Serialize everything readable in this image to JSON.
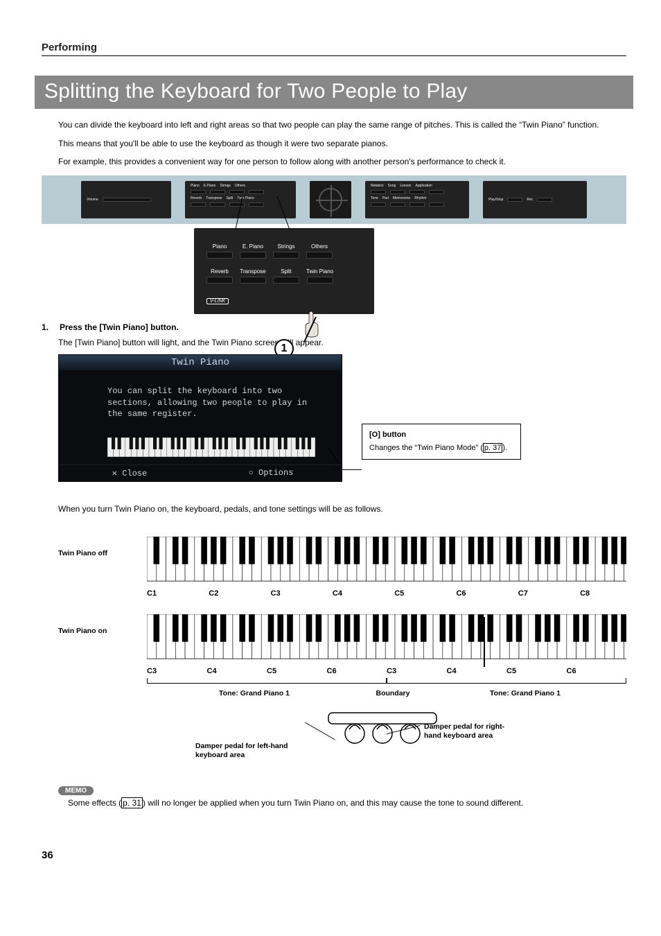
{
  "section_label": "Performing",
  "title": "Splitting the Keyboard for Two People to Play",
  "intro": [
    "You can divide the keyboard into left and right areas so that two people can play the same range of pitches. This is called the “Twin Piano” function.",
    "This means that you'll be able to use the keyboard as though it were two separate pianos.",
    "For example, this provides a convenient way for one person to follow along with another person's performance to check it."
  ],
  "panel_buttons_row1": [
    "Piano",
    "E. Piano",
    "Strings",
    "Others"
  ],
  "panel_buttons_row2": [
    "Reverb",
    "Transpose",
    "Split",
    "Twin Piano"
  ],
  "vlink": "V-LINK",
  "callout_num": "1",
  "step_num": "1.",
  "step_text": "Press the [Twin Piano] button.",
  "step_sub": "The [Twin Piano] button will light, and the Twin Piano screen will appear.",
  "screen": {
    "title": "Twin Piano",
    "body_lines": [
      "You can split the keyboard into two",
      "sections, allowing two people to play in",
      "the same register."
    ],
    "close": "✕ Close",
    "options": "○ Options"
  },
  "o_callout": {
    "hdr": "[O] button",
    "line_pre": "Changes the “Twin Piano Mode” (",
    "link": "p. 37",
    "line_post": ")."
  },
  "follow_text": "When you turn Twin Piano on, the keyboard, pedals, and tone settings will be as follows.",
  "kbd_off_label": "Twin Piano off",
  "kbd_on_label": "Twin Piano on",
  "octaves_off": [
    "C1",
    "C2",
    "C3",
    "C4",
    "C5",
    "C6",
    "C7",
    "C8"
  ],
  "octaves_on": [
    "C3",
    "C4",
    "C5",
    "C6",
    "C3",
    "C4",
    "C5",
    "C6"
  ],
  "tone_left": "Tone: Grand Piano 1",
  "boundary": "Boundary",
  "tone_right": "Tone: Grand Piano 1",
  "pedal_left": "Damper pedal for left-hand keyboard area",
  "pedal_right": "Damper pedal for right-hand keyboard area",
  "memo_badge": "MEMO",
  "memo_pre": "Some effects (",
  "memo_link": "p. 31",
  "memo_post": ") will no longer be applied when you turn Twin Piano on, and this may cause the tone to sound different.",
  "page_num": "36",
  "colors": {
    "title_bg": "#888888",
    "panel_bg": "#b9ccd3",
    "screen_bg": "#0a0c10",
    "screen_text": "#cdd6dc"
  }
}
